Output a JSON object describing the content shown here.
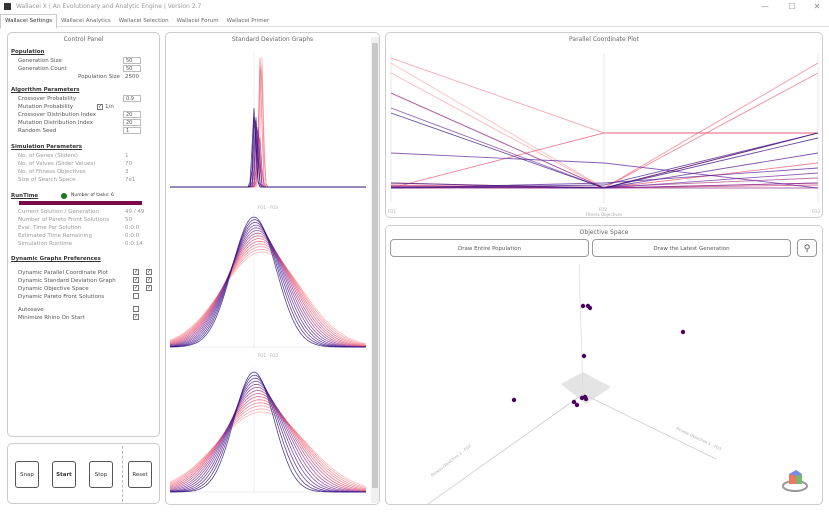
{
  "window": {
    "title": "Wallacei X  |  An Evolutionary and Analytic Engine  |  Version 2.7",
    "minimize": "—",
    "maximize": "☐",
    "close": "✕"
  },
  "tabs": [
    {
      "label": "Wallacei Settings",
      "active": true
    },
    {
      "label": "Wallacei Analytics"
    },
    {
      "label": "Wallacei Selection"
    },
    {
      "label": "Wallacei Forum"
    },
    {
      "label": "Wallacei Primer"
    }
  ],
  "control_panel": {
    "title": "Control Panel",
    "population": {
      "heading": "Population",
      "generation_size_label": "Generation Size",
      "generation_size": "50",
      "generation_count_label": "Generation Count",
      "generation_count": "50",
      "population_size_label": "Population Size",
      "population_size": "2500"
    },
    "algorithm": {
      "heading": "Algorithm Parameters",
      "crossover_probability_label": "Crossover Probability",
      "crossover_probability": "0.9",
      "mutation_probability_label": "Mutation Probability",
      "mutation_checkbox_label": "1/n",
      "mutation_checked": true,
      "crossover_distribution_label": "Crossover Distribution Index",
      "crossover_distribution": "20",
      "mutation_distribution_label": "Mutation Distribution Index",
      "mutation_distribution": "20",
      "random_seed_label": "Random Seed",
      "random_seed": "1"
    },
    "simulation": {
      "heading": "Simulation Parameters",
      "genes_label": "No. of Genes (Sliders)",
      "genes": "1",
      "values_label": "No. of Values (Slider Values)",
      "values": "70",
      "objectives_label": "No. of Fitness Objectives",
      "objectives": "3",
      "search_space_label": "Size of Search Space",
      "search_space": "7e1"
    },
    "runtime": {
      "heading": "RunTime",
      "cores_label": "Number of tasks: 6",
      "status_color": "#1a7a1a",
      "progress": 1.0,
      "progress_color": "#7a0a4a",
      "current_label": "Current Solution / Generation",
      "current": "49 / 49",
      "pareto_label": "Number of Pareto Front Solutions",
      "pareto": "50",
      "eval_label": "Eval. Time Per Solution",
      "eval": "0:0:0",
      "remaining_label": "Estimated Time Remaining",
      "remaining": "0:0:0",
      "runtime_label": "Simulation Runtime",
      "runtime": "0:0:14"
    },
    "graphs": {
      "heading": "Dynamic Graphs Preferences",
      "items": [
        {
          "label": "Dynamic Parallel Coordinate Plot",
          "a": true,
          "b": true
        },
        {
          "label": "Dynamic Standard Deviation Graph",
          "a": true,
          "b": true
        },
        {
          "label": "Dynamic Objective Space",
          "a": true,
          "b": true
        },
        {
          "label": "Dynamic Pareto Front Solutions",
          "a": false
        }
      ],
      "autosave_label": "Autosave",
      "autosave": false,
      "minimize_label": "Minimize Rhino On Start",
      "minimize": true
    }
  },
  "buttons": {
    "snap": "Snap",
    "start": "Start",
    "stop": "Stop",
    "reset": "Reset"
  },
  "stddev": {
    "title": "Standard Deviation Graphs",
    "axis_label": "FO1 - FO3",
    "curve_colors": [
      "#ff9a9a",
      "#e05070",
      "#6a2aa0",
      "#2a1080"
    ]
  },
  "parallel": {
    "title": "Parallel Coordinate Plot",
    "axes": [
      "FO1",
      "FO2",
      "FO3"
    ],
    "xlabel": "Fitness Objectives"
  },
  "objective_space": {
    "title": "Objective Space",
    "draw_all": "Draw Entire Population",
    "draw_latest": "Draw the Latest Generation",
    "zoom_icon": "magnifier-icon",
    "axis1": "Fitness Objective 1 - FO1",
    "axis2": "Fitness Objective 2 - FO2",
    "point_color": "#4a0060"
  }
}
